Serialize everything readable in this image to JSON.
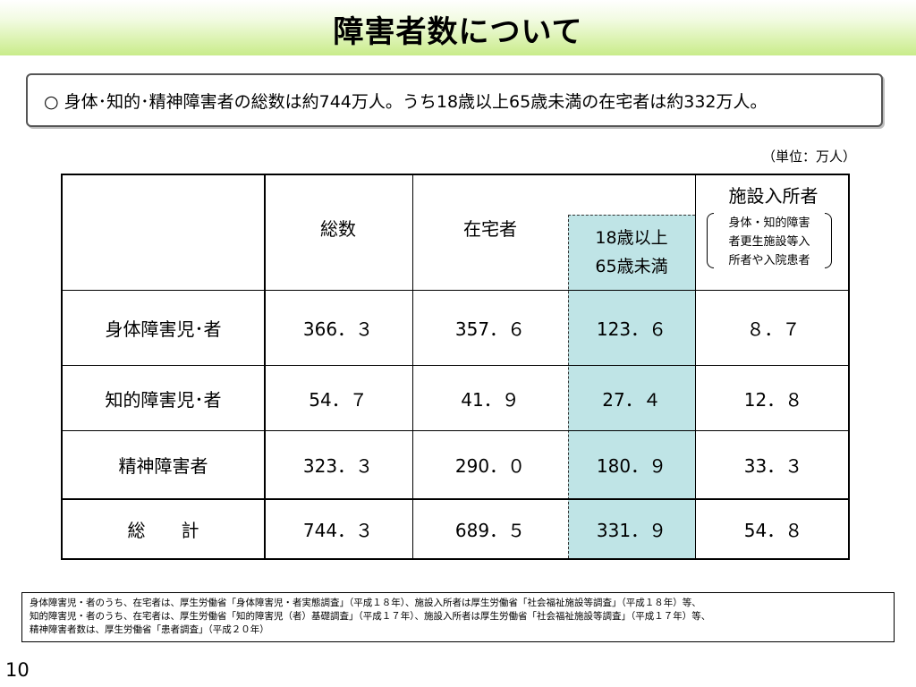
{
  "title": "障害者数について",
  "summary": "○ 身体･知的･精神障害者の総数は約744万人。うち18歳以上65歳未満の在宅者は約332万人。",
  "unit_note": "（単位：万人）",
  "table": {
    "headers": {
      "total": "総数",
      "at_home": "在宅者",
      "age_range_line1": "18歳以上",
      "age_range_line2": "65歳未満",
      "facility": "施設入所者",
      "facility_note_line1": "身体・知的障害",
      "facility_note_line2": "者更生施設等入",
      "facility_note_line3": "所者や入院患者"
    },
    "rows": [
      {
        "label": "身体障害児･者",
        "total": "366．３",
        "at_home": "357．６",
        "age_18_64": "123．６",
        "facility": "８．７"
      },
      {
        "label": "知的障害児･者",
        "total": "54．７",
        "at_home": "41．９",
        "age_18_64": "27．４",
        "facility": "12．８"
      },
      {
        "label": "精神障害者",
        "total": "323．３",
        "at_home": "290．０",
        "age_18_64": "180．９",
        "facility": "33．３"
      },
      {
        "label": "総　　計",
        "total": "744．３",
        "at_home": "689．５",
        "age_18_64": "331．９",
        "facility": "54．８"
      }
    ]
  },
  "source_notes": [
    "身体障害児・者のうち、在宅者は、厚生労働省「身体障害児・者実態調査」（平成１８年）、施設入所者は厚生労働省「社会福祉施設等調査」（平成１８年）等、",
    "知的障害児・者のうち、在宅者は、厚生労働省「知的障害児（者）基礎調査」（平成１７年）、施設入所者は厚生労働省「社会福祉施設等調査」（平成１７年）等、",
    "精神障害者数は、厚生労働省「患者調査」（平成２０年）"
  ],
  "page_number": "10",
  "colors": {
    "title_gradient_end": "#c9ec8a",
    "highlight_column": "#bfe4e6"
  }
}
